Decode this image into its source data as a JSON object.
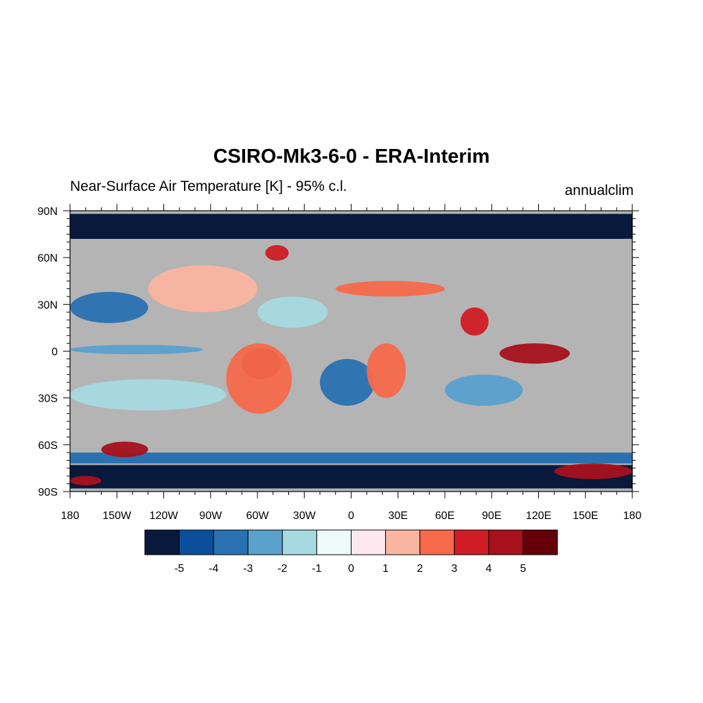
{
  "title": "CSIRO-Mk3-6-0 - ERA-Interim",
  "subtitle_left": "Near-Surface Air Temperature [K] - 95% c.l.",
  "subtitle_right": "annualclim",
  "map": {
    "projection": "equirectangular",
    "lon_range": [
      -180,
      180
    ],
    "lat_range": [
      -90,
      90
    ],
    "missing_color": "#b4b4b4",
    "lat_ticks": [
      {
        "value": 90,
        "label": "90N"
      },
      {
        "value": 60,
        "label": "60N"
      },
      {
        "value": 30,
        "label": "30N"
      },
      {
        "value": 0,
        "label": "0"
      },
      {
        "value": -30,
        "label": "30S"
      },
      {
        "value": -60,
        "label": "60S"
      },
      {
        "value": -90,
        "label": "90S"
      }
    ],
    "lon_ticks": [
      {
        "value": -180,
        "label": "180"
      },
      {
        "value": -150,
        "label": "150W"
      },
      {
        "value": -120,
        "label": "120W"
      },
      {
        "value": -90,
        "label": "90W"
      },
      {
        "value": -60,
        "label": "60W"
      },
      {
        "value": -30,
        "label": "30W"
      },
      {
        "value": 0,
        "label": "0"
      },
      {
        "value": 30,
        "label": "30E"
      },
      {
        "value": 60,
        "label": "60E"
      },
      {
        "value": 90,
        "label": "90E"
      },
      {
        "value": 120,
        "label": "120E"
      },
      {
        "value": 150,
        "label": "150E"
      },
      {
        "value": 180,
        "label": "180"
      }
    ]
  },
  "colorbar": {
    "colors": [
      "#08193c",
      "#0b4f9c",
      "#2a71b2",
      "#5aa0cd",
      "#a7d9e1",
      "#eef9fa",
      "#fde8ef",
      "#f9b5a0",
      "#f7694b",
      "#d01c24",
      "#a7111c",
      "#650008"
    ],
    "labels": [
      "-5",
      "-4",
      "-3",
      "-2",
      "-1",
      "0",
      "1",
      "2",
      "3",
      "4",
      "5"
    ]
  },
  "regions": [
    {
      "name": "arctic",
      "level": -6,
      "lon": [
        -180,
        180
      ],
      "lat": [
        72,
        88
      ]
    },
    {
      "name": "antarctic",
      "level": -6,
      "lon": [
        -180,
        180
      ],
      "lat": [
        -88,
        -73
      ]
    },
    {
      "name": "southern-ocean-band",
      "level": -4,
      "lon": [
        -180,
        180
      ],
      "lat": [
        -72,
        -65
      ]
    },
    {
      "name": "south-pacific-cold",
      "level": -2,
      "lon": [
        -180,
        -80
      ],
      "lat": [
        -38,
        -18
      ]
    },
    {
      "name": "south-atlantic-cold",
      "level": -4,
      "lon": [
        -20,
        15
      ],
      "lat": [
        -35,
        -5
      ]
    },
    {
      "name": "south-indian-cold",
      "level": -3,
      "lon": [
        60,
        110
      ],
      "lat": [
        -35,
        -15
      ]
    },
    {
      "name": "north-pacific-cold",
      "level": -4,
      "lon": [
        -180,
        -130
      ],
      "lat": [
        18,
        38
      ]
    },
    {
      "name": "equatorial-pacific-cold",
      "level": -3,
      "lon": [
        -180,
        -95
      ],
      "lat": [
        -2,
        4
      ]
    },
    {
      "name": "north-atlantic-cold",
      "level": -2,
      "lon": [
        -60,
        -15
      ],
      "lat": [
        15,
        35
      ]
    },
    {
      "name": "amazon-warm",
      "level": 5,
      "lon": [
        -70,
        -45
      ],
      "lat": [
        -18,
        2
      ]
    },
    {
      "name": "south-america-warm",
      "level": 2,
      "lon": [
        -80,
        -38
      ],
      "lat": [
        -40,
        5
      ]
    },
    {
      "name": "africa-warm",
      "level": 2,
      "lon": [
        10,
        35
      ],
      "lat": [
        -30,
        5
      ]
    },
    {
      "name": "indonesia-warm",
      "level": 4,
      "lon": [
        95,
        140
      ],
      "lat": [
        -8,
        5
      ]
    },
    {
      "name": "india-warm",
      "level": 3,
      "lon": [
        70,
        88
      ],
      "lat": [
        10,
        28
      ]
    },
    {
      "name": "greenland-warm",
      "level": 3,
      "lon": [
        -55,
        -40
      ],
      "lat": [
        58,
        68
      ]
    },
    {
      "name": "south-pacific-warm",
      "level": 4,
      "lon": [
        -160,
        -130
      ],
      "lat": [
        -68,
        -58
      ]
    },
    {
      "name": "eurasia-mixed",
      "level": 2,
      "lon": [
        -10,
        60
      ],
      "lat": [
        35,
        45
      ]
    },
    {
      "name": "north-america-mixed",
      "level": 1,
      "lon": [
        -130,
        -60
      ],
      "lat": [
        25,
        55
      ]
    },
    {
      "name": "antarctic-peninsula-warm",
      "level": 4,
      "lon": [
        130,
        180
      ],
      "lat": [
        -82,
        -72
      ]
    },
    {
      "name": "ross-sea-warm",
      "level": 4,
      "lon": [
        -180,
        -160
      ],
      "lat": [
        -86,
        -80
      ]
    }
  ]
}
